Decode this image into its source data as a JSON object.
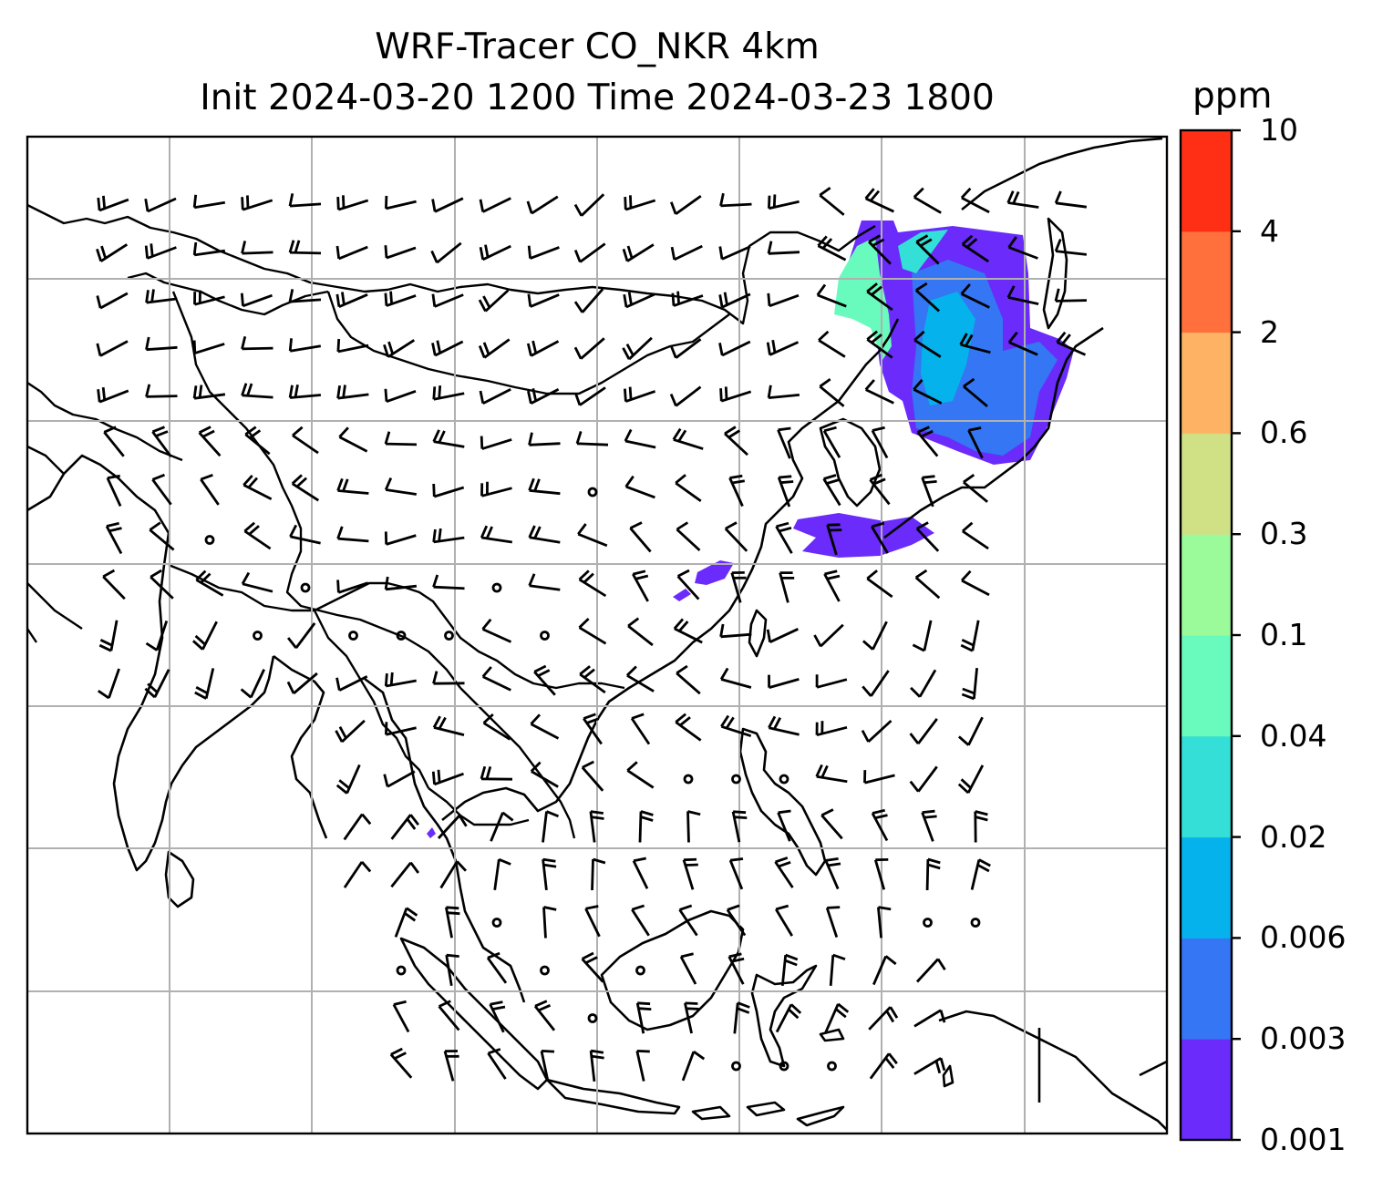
{
  "title": {
    "line1": "WRF-Tracer CO_NKR 4km",
    "line2": "Init 2024-03-20 1200 Time 2024-03-23 1800"
  },
  "colorbar": {
    "unit": "ppm",
    "ticks": [
      "0.001",
      "0.003",
      "0.006",
      "0.02",
      "0.04",
      "0.1",
      "0.3",
      "0.6",
      "2",
      "4",
      "10"
    ],
    "colors": [
      "#6a2bfb",
      "#3476f3",
      "#06b2ec",
      "#33dfd6",
      "#69fbbd",
      "#9bfb9a",
      "#d0e085",
      "#fdb264",
      "#ff703c",
      "#ff2f16"
    ]
  },
  "map": {
    "gridlines": true,
    "grid_columns": 8,
    "grid_rows": 7,
    "tracer_color_main": "#6a2bfb",
    "tracer_color_mid": "#3476f3",
    "tracer_color_light": "#06b2ec",
    "tracer_color_green": "#69fbbd"
  }
}
